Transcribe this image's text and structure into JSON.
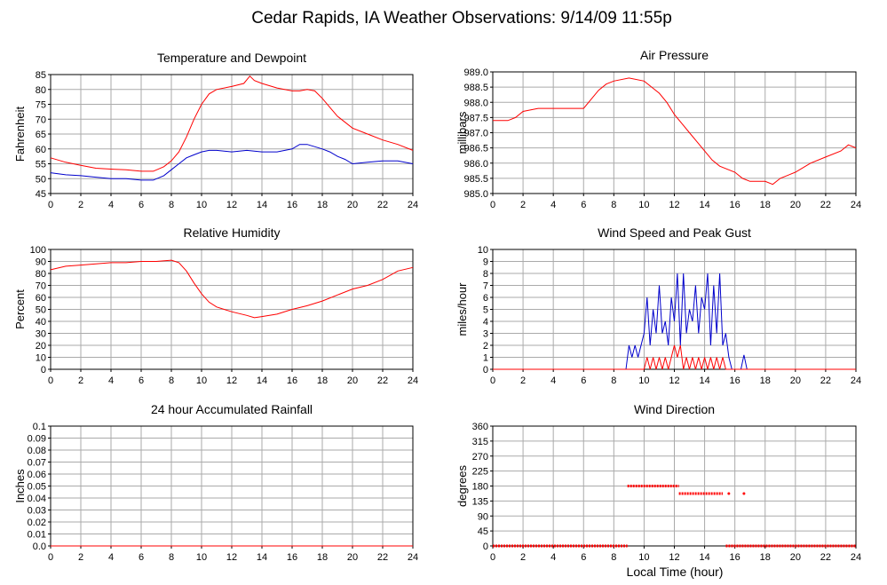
{
  "page": {
    "title": "Cedar Rapids, IA Weather Observations: 9/14/09 11:55p",
    "xlabel": "Local Time (hour)"
  },
  "colors": {
    "red": "#ff0000",
    "blue": "#0000cc",
    "grid": "#aaaaaa",
    "axis": "#000000"
  },
  "chart_data": [
    {
      "id": "temp",
      "type": "line",
      "title": "Temperature and Dewpoint",
      "ylabel": "Fahrenheit",
      "xlim": [
        0,
        24
      ],
      "ylim": [
        45,
        85
      ],
      "xticks": [
        0,
        2,
        4,
        6,
        8,
        10,
        12,
        14,
        16,
        18,
        20,
        22,
        24
      ],
      "yticks": [
        45,
        50,
        55,
        60,
        65,
        70,
        75,
        80,
        85
      ],
      "grid": true,
      "series": [
        {
          "color": "#ff0000",
          "x": [
            0,
            1,
            2,
            3,
            4,
            5,
            6,
            6.8,
            7.5,
            8,
            8.5,
            9,
            9.5,
            10,
            10.5,
            11,
            12,
            12.8,
            13.2,
            13.5,
            14,
            15,
            16,
            16.5,
            17,
            17.5,
            18,
            18.5,
            19,
            20,
            21,
            22,
            23,
            24
          ],
          "y": [
            57,
            55.5,
            54.5,
            53.5,
            53.2,
            53,
            52.5,
            52.5,
            54,
            56,
            59,
            64,
            70,
            75,
            78.5,
            80,
            81,
            82,
            84.5,
            83,
            82,
            80.5,
            79.5,
            79.5,
            80,
            79.5,
            77,
            74,
            71,
            67,
            65,
            63,
            61.5,
            59.5
          ]
        },
        {
          "color": "#0000cc",
          "x": [
            0,
            1,
            2,
            3,
            4,
            5,
            6,
            6.8,
            7.5,
            8,
            8.5,
            9,
            9.5,
            10,
            10.5,
            11,
            12,
            13,
            14,
            15,
            16,
            16.5,
            17,
            18,
            18.5,
            19,
            19.5,
            20,
            21,
            22,
            23,
            24
          ],
          "y": [
            52,
            51.3,
            51,
            50.5,
            50,
            50,
            49.5,
            49.5,
            51,
            53,
            55,
            57,
            58,
            59,
            59.5,
            59.5,
            59,
            59.5,
            59,
            59,
            60,
            61.5,
            61.5,
            60,
            59,
            57.5,
            56.5,
            55,
            55.5,
            56,
            56,
            55
          ]
        }
      ]
    },
    {
      "id": "press",
      "type": "line",
      "title": "Air Pressure",
      "ylabel": "millibars",
      "xlim": [
        0,
        24
      ],
      "ylim": [
        985.0,
        989.0
      ],
      "xticks": [
        0,
        2,
        4,
        6,
        8,
        10,
        12,
        14,
        16,
        18,
        20,
        22,
        24
      ],
      "yticks": [
        "985.0",
        "985.5",
        "986.0",
        "986.5",
        "987.0",
        "987.5",
        "988.0",
        "988.5",
        "989.0"
      ],
      "grid": true,
      "series": [
        {
          "color": "#ff0000",
          "x": [
            0,
            1,
            1.5,
            2,
            3,
            4,
            5,
            6,
            6.5,
            7,
            7.5,
            8,
            9,
            10,
            10.5,
            11,
            11.5,
            12,
            12.5,
            13,
            13.5,
            14,
            14.5,
            15,
            16,
            16.5,
            17,
            18,
            18.5,
            19,
            20,
            21,
            22,
            23,
            23.5,
            24
          ],
          "y": [
            987.4,
            987.4,
            987.5,
            987.7,
            987.8,
            987.8,
            987.8,
            987.8,
            988.1,
            988.4,
            988.6,
            988.7,
            988.8,
            988.7,
            988.5,
            988.3,
            988.0,
            987.6,
            987.3,
            987.0,
            986.7,
            986.4,
            986.1,
            985.9,
            985.7,
            985.5,
            985.4,
            985.4,
            985.3,
            985.5,
            985.7,
            986.0,
            986.2,
            986.4,
            986.6,
            986.5
          ]
        }
      ]
    },
    {
      "id": "rh",
      "type": "line",
      "title": "Relative Humidity",
      "ylabel": "Percent",
      "xlim": [
        0,
        24
      ],
      "ylim": [
        0,
        100
      ],
      "xticks": [
        0,
        2,
        4,
        6,
        8,
        10,
        12,
        14,
        16,
        18,
        20,
        22,
        24
      ],
      "yticks": [
        0,
        10,
        20,
        30,
        40,
        50,
        60,
        70,
        80,
        90,
        100
      ],
      "grid": true,
      "series": [
        {
          "color": "#ff0000",
          "x": [
            0,
            1,
            2,
            3,
            4,
            5,
            6,
            7,
            8,
            8.5,
            9,
            9.5,
            10,
            10.5,
            11,
            12,
            13,
            13.5,
            14,
            15,
            16,
            17,
            18,
            19,
            20,
            21,
            22,
            23,
            24
          ],
          "y": [
            83,
            86,
            87,
            88,
            89,
            89,
            90,
            90,
            91,
            89,
            82,
            72,
            63,
            56,
            52,
            48,
            45,
            43,
            44,
            46,
            50,
            53,
            57,
            62,
            67,
            70,
            75,
            82,
            85
          ]
        }
      ]
    },
    {
      "id": "wind",
      "type": "line",
      "title": "Wind Speed and Peak Gust",
      "ylabel": "miles/hour",
      "xlim": [
        0,
        24
      ],
      "ylim": [
        0,
        10
      ],
      "xticks": [
        0,
        2,
        4,
        6,
        8,
        10,
        12,
        14,
        16,
        18,
        20,
        22,
        24
      ],
      "yticks": [
        0,
        1,
        2,
        3,
        4,
        5,
        6,
        7,
        8,
        9,
        10
      ],
      "grid": true,
      "series": [
        {
          "color": "#0000cc",
          "x": [
            0,
            8.8,
            9.0,
            9.2,
            9.4,
            9.6,
            9.8,
            10.0,
            10.2,
            10.4,
            10.6,
            10.8,
            11.0,
            11.2,
            11.4,
            11.6,
            11.8,
            12.0,
            12.2,
            12.4,
            12.6,
            12.8,
            13.0,
            13.2,
            13.4,
            13.6,
            13.8,
            14.0,
            14.2,
            14.4,
            14.6,
            14.8,
            15.0,
            15.2,
            15.4,
            15.6,
            15.8,
            16.0,
            16.2,
            16.4,
            16.6,
            16.8,
            24
          ],
          "y": [
            0,
            0,
            2,
            1,
            2,
            1,
            2,
            3,
            6,
            2,
            5,
            3,
            7,
            3,
            4,
            2,
            6,
            4,
            8,
            2,
            8,
            3,
            5,
            4,
            7,
            3,
            6,
            5,
            8,
            2,
            7,
            3,
            8,
            2,
            3,
            1,
            0,
            0,
            0,
            0,
            1.2,
            0,
            0
          ]
        },
        {
          "color": "#ff0000",
          "x": [
            0,
            10.0,
            10.2,
            10.4,
            10.6,
            10.8,
            11.0,
            11.2,
            11.4,
            11.6,
            11.8,
            12.0,
            12.2,
            12.4,
            12.6,
            12.8,
            13.0,
            13.2,
            13.4,
            13.6,
            13.8,
            14.0,
            14.2,
            14.4,
            14.6,
            14.8,
            15.0,
            15.2,
            15.4,
            24
          ],
          "y": [
            0,
            0,
            1,
            0,
            1,
            0,
            1,
            0,
            1,
            0,
            1,
            2,
            1,
            2,
            0,
            1,
            0,
            1,
            0,
            1,
            0,
            1,
            0,
            1,
            0,
            1,
            0,
            1,
            0,
            0
          ]
        }
      ]
    },
    {
      "id": "rain",
      "type": "line",
      "title": "24 hour Accumulated Rainfall",
      "ylabel": "Inches",
      "xlim": [
        0,
        24
      ],
      "ylim": [
        0,
        0.1
      ],
      "xticks": [
        0,
        2,
        4,
        6,
        8,
        10,
        12,
        14,
        16,
        18,
        20,
        22,
        24
      ],
      "yticks": [
        "0.0",
        "0.01",
        "0.02",
        "0.03",
        "0.04",
        "0.05",
        "0.06",
        "0.07",
        "0.08",
        "0.09",
        "0.1"
      ],
      "grid": true,
      "series": [
        {
          "color": "#ff0000",
          "x": [
            0,
            24
          ],
          "y": [
            0,
            0
          ]
        }
      ]
    },
    {
      "id": "dir",
      "type": "scatter",
      "title": "Wind Direction",
      "ylabel": "degrees",
      "xlim": [
        0,
        24
      ],
      "ylim": [
        0,
        360
      ],
      "xticks": [
        0,
        2,
        4,
        6,
        8,
        10,
        12,
        14,
        16,
        18,
        20,
        22,
        24
      ],
      "yticks": [
        0,
        45,
        90,
        135,
        180,
        225,
        270,
        315,
        360
      ],
      "grid": true,
      "segments": [
        {
          "color": "#ff0000",
          "x0": 0,
          "x1": 8.9,
          "y": 0
        },
        {
          "color": "#ff0000",
          "x0": 8.9,
          "x1": 12.3,
          "y": 180
        },
        {
          "color": "#ff0000",
          "x0": 12.3,
          "x1": 15.2,
          "y": 157.5
        },
        {
          "color": "#ff0000",
          "x0": 15.4,
          "x1": 24,
          "y": 0
        }
      ],
      "points": [
        {
          "color": "#ff0000",
          "x": 15.6,
          "y": 157.5
        },
        {
          "color": "#ff0000",
          "x": 16.6,
          "y": 157.5
        }
      ]
    }
  ]
}
